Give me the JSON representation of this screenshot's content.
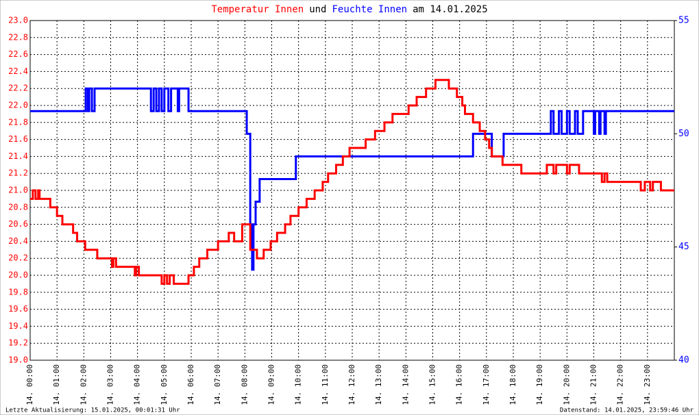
{
  "chart_data": {
    "type": "line",
    "step": "post",
    "title_parts": [
      {
        "text": "Temperatur Innen",
        "color": "#ff0000"
      },
      {
        "text": "und",
        "color": "#000000"
      },
      {
        "text": "Feuchte Innen",
        "color": "#0000ff"
      },
      {
        "text": "am 14.01.2025",
        "color": "#000000"
      }
    ],
    "footer_left": "Letzte Aktualisierung: 15.01.2025, 00:01:31 Uhr",
    "footer_right": "Datenstand: 14.01.2025, 23:59:46 Uhr",
    "grid": true,
    "xlim": [
      0,
      24
    ],
    "xticks": [
      {
        "value": 0,
        "label": "14. 00:00"
      },
      {
        "value": 1,
        "label": "14. 01:00"
      },
      {
        "value": 2,
        "label": "14. 02:00"
      },
      {
        "value": 3,
        "label": "14. 03:00"
      },
      {
        "value": 4,
        "label": "14. 04:00"
      },
      {
        "value": 5,
        "label": "14. 05:00"
      },
      {
        "value": 6,
        "label": "14. 06:00"
      },
      {
        "value": 7,
        "label": "14. 07:00"
      },
      {
        "value": 8,
        "label": "14. 08:00"
      },
      {
        "value": 9,
        "label": "14. 09:00"
      },
      {
        "value": 10,
        "label": "14. 10:00"
      },
      {
        "value": 11,
        "label": "14. 11:00"
      },
      {
        "value": 12,
        "label": "14. 12:00"
      },
      {
        "value": 13,
        "label": "14. 13:00"
      },
      {
        "value": 14,
        "label": "14. 14:00"
      },
      {
        "value": 15,
        "label": "14. 15:00"
      },
      {
        "value": 16,
        "label": "14. 16:00"
      },
      {
        "value": 17,
        "label": "14. 17:00"
      },
      {
        "value": 18,
        "label": "14. 18:00"
      },
      {
        "value": 19,
        "label": "14. 19:00"
      },
      {
        "value": 20,
        "label": "14. 20:00"
      },
      {
        "value": 21,
        "label": "14. 21:00"
      },
      {
        "value": 22,
        "label": "14. 22:00"
      },
      {
        "value": 23,
        "label": "14. 23:00"
      }
    ],
    "ylim": [
      19.0,
      23.0
    ],
    "yticks": [
      {
        "value": 19,
        "label": "19.0"
      },
      19.2,
      19.4,
      19.6,
      19.8,
      {
        "value": 20,
        "label": "20.0"
      },
      20.2,
      20.4,
      20.6,
      20.8,
      {
        "value": 21,
        "label": "21.0"
      },
      21.2,
      21.4,
      21.6,
      21.8,
      {
        "value": 22,
        "label": "22.0"
      },
      22.2,
      22.4,
      22.6,
      22.8,
      {
        "value": 23,
        "label": "23.0"
      }
    ],
    "y2lim": [
      40,
      55
    ],
    "y2ticks": [
      40,
      45,
      50,
      55
    ],
    "series": [
      {
        "name": "Temperatur Innen",
        "color": "#ff0000",
        "axis": "y",
        "x": [
          0,
          0.1,
          0.2,
          0.3,
          0.35,
          0.4,
          0.75,
          1.0,
          1.2,
          1.6,
          1.75,
          2.05,
          2.5,
          3.05,
          3.1,
          3.2,
          3.9,
          3.95,
          4.05,
          4.1,
          4.9,
          5.0,
          5.1,
          5.2,
          5.35,
          5.9,
          6.1,
          6.3,
          6.6,
          7.0,
          7.4,
          7.6,
          7.9,
          8.2,
          8.45,
          8.7,
          8.96,
          9.2,
          9.5,
          9.7,
          10.0,
          10.3,
          10.6,
          10.9,
          11.1,
          11.4,
          11.65,
          11.9,
          12.5,
          12.85,
          13.2,
          13.5,
          14.1,
          14.4,
          14.75,
          15.1,
          15.6,
          15.9,
          16.1,
          16.2,
          16.5,
          16.75,
          16.95,
          17.1,
          17.2,
          17.6,
          18.3,
          19.25,
          19.5,
          19.6,
          20.0,
          20.1,
          20.45,
          21.3,
          21.4,
          21.5,
          21.7,
          22.75,
          22.9,
          23.1,
          23.2,
          23.5
        ],
        "values": [
          20.9,
          21.0,
          20.9,
          21.0,
          20.9,
          20.9,
          20.8,
          20.7,
          20.6,
          20.5,
          20.4,
          20.3,
          20.2,
          20.1,
          20.2,
          20.1,
          20.0,
          20.1,
          20.0,
          20.0,
          19.9,
          20.0,
          19.9,
          20.0,
          19.9,
          20.0,
          20.1,
          20.2,
          20.3,
          20.4,
          20.5,
          20.4,
          20.6,
          20.3,
          20.2,
          20.3,
          20.4,
          20.5,
          20.6,
          20.7,
          20.8,
          20.9,
          21.0,
          21.1,
          21.2,
          21.3,
          21.4,
          21.5,
          21.6,
          21.7,
          21.8,
          21.9,
          22.0,
          22.1,
          22.2,
          22.3,
          22.2,
          22.1,
          22.0,
          21.9,
          21.8,
          21.7,
          21.6,
          21.5,
          21.4,
          21.3,
          21.2,
          21.3,
          21.2,
          21.3,
          21.2,
          21.3,
          21.2,
          21.1,
          21.2,
          21.1,
          21.1,
          21.0,
          21.1,
          21.0,
          21.1,
          21.0
        ]
      },
      {
        "name": "Feuchte Innen",
        "color": "#0000ff",
        "axis": "y2",
        "x": [
          0,
          2.07,
          2.15,
          2.2,
          2.3,
          2.4,
          4.5,
          4.6,
          4.7,
          4.8,
          4.9,
          5.0,
          5.15,
          5.25,
          5.5,
          5.55,
          5.9,
          5.95,
          8.07,
          8.2,
          8.27,
          8.32,
          8.4,
          8.55,
          9.9,
          16.5,
          17.2,
          17.64,
          19.4,
          19.5,
          19.7,
          19.8,
          20.0,
          20.1,
          20.3,
          20.4,
          20.6,
          21.0,
          21.05,
          21.2,
          21.25,
          21.4,
          21.45
        ],
        "values": [
          51,
          52,
          51,
          52,
          51,
          52,
          51,
          52,
          51,
          52,
          51,
          52,
          51,
          52,
          51,
          52,
          51,
          51,
          50,
          46,
          44,
          46,
          47,
          48,
          49,
          50,
          49,
          50,
          51,
          50,
          51,
          50,
          51,
          50,
          51,
          50,
          51,
          50,
          51,
          50,
          51,
          50,
          51
        ]
      }
    ]
  }
}
